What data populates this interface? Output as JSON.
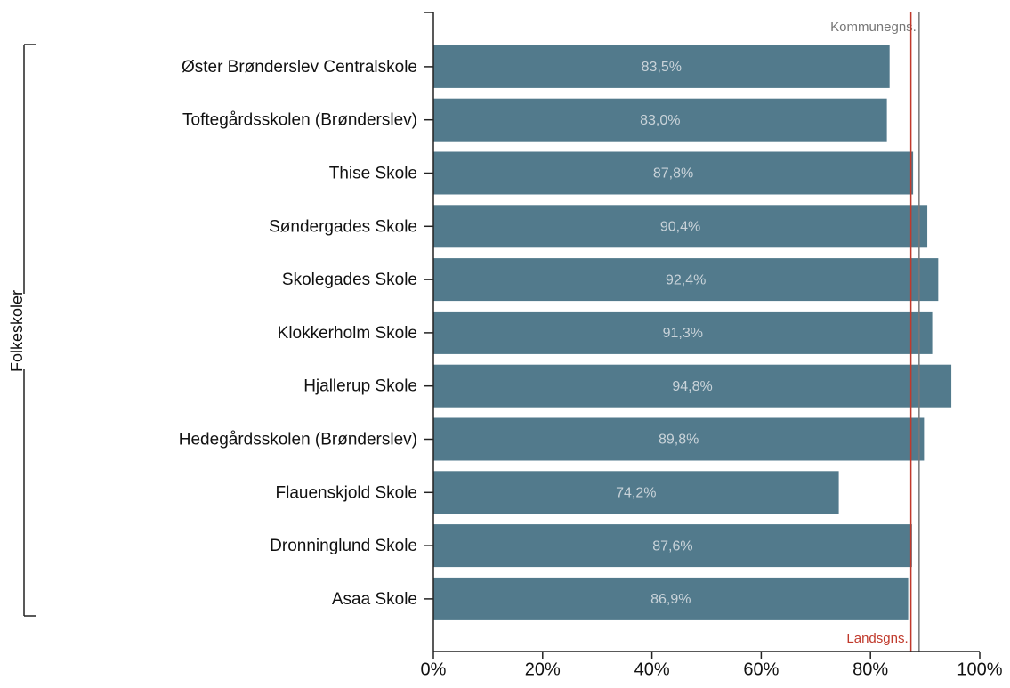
{
  "chart_data": {
    "type": "barh",
    "group": "Folkeskoler",
    "categories": [
      "Øster Brønderslev Centralskole",
      "Toftegårdsskolen (Brønderslev)",
      "Thise Skole",
      "Søndergades Skole",
      "Skolegades Skole",
      "Klokkerholm Skole",
      "Hjallerup Skole",
      "Hedegårdsskolen (Brønderslev)",
      "Flauenskjold Skole",
      "Dronninglund Skole",
      "Asaa Skole"
    ],
    "values": [
      83.5,
      83.0,
      87.8,
      90.4,
      92.4,
      91.3,
      94.8,
      89.8,
      74.2,
      87.6,
      86.9
    ],
    "value_labels": [
      "83,5%",
      "83,0%",
      "87,8%",
      "90,4%",
      "92,4%",
      "91,3%",
      "94,8%",
      "89,8%",
      "74,2%",
      "87,6%",
      "86,9%"
    ],
    "color": "#527a8c",
    "xlim": [
      0,
      100
    ],
    "xticks": [
      {
        "value": 0,
        "label": "0%"
      },
      {
        "value": 20,
        "label": "20%"
      },
      {
        "value": 40,
        "label": "40%"
      },
      {
        "value": 60,
        "label": "60%"
      },
      {
        "value": 80,
        "label": "80%"
      },
      {
        "value": 100,
        "label": "100%"
      }
    ],
    "reference_lines": [
      {
        "label": "Kommunegns.",
        "value": 88.9,
        "color": "#777777",
        "position": "top"
      },
      {
        "label": "Landsgns.",
        "value": 87.4,
        "color": "#c0392b",
        "position": "bottom"
      }
    ]
  }
}
